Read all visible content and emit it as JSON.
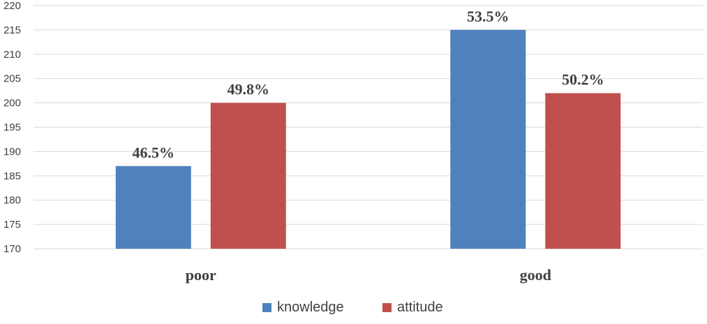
{
  "chart_data": {
    "type": "bar",
    "categories": [
      "poor",
      "good"
    ],
    "series": [
      {
        "name": "knowledge",
        "values": [
          187,
          215
        ],
        "labels": [
          "46.5%",
          "53.5%"
        ],
        "color": "#4F81BD"
      },
      {
        "name": "attitude",
        "values": [
          200,
          202
        ],
        "labels": [
          "49.8%",
          "50.2%"
        ],
        "color": "#C0504D"
      }
    ],
    "ylim": [
      170,
      220
    ],
    "yticks": [
      170,
      175,
      180,
      185,
      190,
      195,
      200,
      205,
      210,
      215,
      220
    ],
    "grid": true,
    "legend": "bottom-center"
  }
}
